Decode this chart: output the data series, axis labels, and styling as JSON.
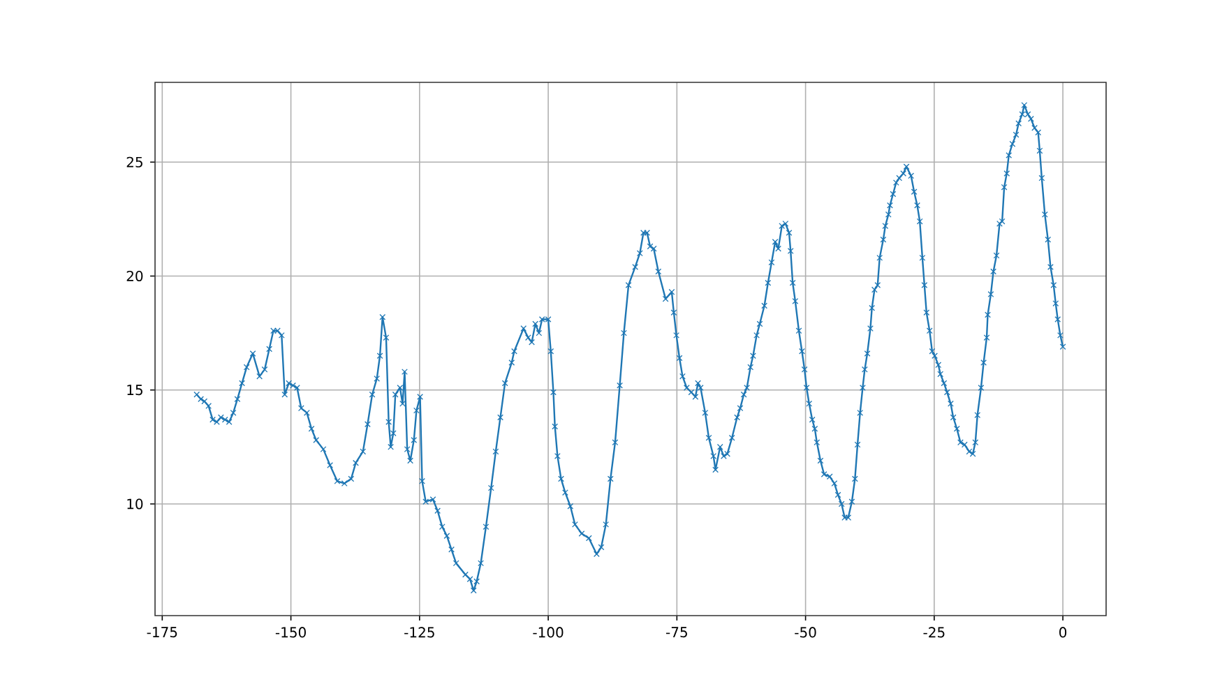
{
  "chart_data": {
    "type": "line",
    "color": "#1f77b4",
    "marker": "cross",
    "line_style": "solid",
    "grid": true,
    "x": [
      -168.3,
      -167.5,
      -166.8,
      -166.0,
      -165.2,
      -164.4,
      -163.6,
      -162.8,
      -162.0,
      -161.2,
      -160.4,
      -159.5,
      -158.6,
      -157.4,
      -156.1,
      -155.1,
      -154.2,
      -153.4,
      -152.6,
      -151.8,
      -151.2,
      -150.4,
      -149.6,
      -148.8,
      -148.0,
      -146.9,
      -146.0,
      -145.1,
      -143.7,
      -142.4,
      -141.0,
      -139.6,
      -138.3,
      -137.4,
      -136.0,
      -135.1,
      -134.2,
      -133.3,
      -132.7,
      -132.2,
      -131.5,
      -131.0,
      -130.6,
      -130.1,
      -129.7,
      -128.8,
      -128.3,
      -127.9,
      -127.4,
      -126.8,
      -126.1,
      -125.6,
      -124.9,
      -124.5,
      -123.8,
      -122.4,
      -121.5,
      -120.6,
      -119.7,
      -118.8,
      -117.9,
      -116.1,
      -115.2,
      -114.5,
      -113.9,
      -113.1,
      -112.1,
      -111.1,
      -110.2,
      -109.3,
      -108.4,
      -107.1,
      -106.6,
      -104.8,
      -103.9,
      -103.2,
      -102.5,
      -101.8,
      -101.2,
      -100.0,
      -99.5,
      -99.0,
      -98.7,
      -98.2,
      -97.5,
      -96.7,
      -95.7,
      -94.8,
      -93.5,
      -92.1,
      -90.6,
      -89.7,
      -88.8,
      -87.9,
      -87.0,
      -86.1,
      -85.3,
      -84.4,
      -83.1,
      -82.2,
      -81.5,
      -80.8,
      -80.2,
      -79.5,
      -78.6,
      -77.2,
      -76.0,
      -75.6,
      -75.1,
      -74.5,
      -73.9,
      -73.1,
      -72.2,
      -71.4,
      -70.9,
      -70.4,
      -69.5,
      -68.8,
      -67.9,
      -67.5,
      -66.6,
      -65.9,
      -65.2,
      -64.3,
      -63.3,
      -62.7,
      -62.0,
      -61.4,
      -60.7,
      -60.2,
      -59.5,
      -58.9,
      -58.0,
      -57.3,
      -56.6,
      -55.9,
      -55.3,
      -54.6,
      -53.9,
      -53.2,
      -52.9,
      -52.5,
      -52.0,
      -51.3,
      -50.7,
      -50.2,
      -49.8,
      -49.3,
      -48.7,
      -48.2,
      -47.8,
      -47.1,
      -46.4,
      -45.3,
      -44.4,
      -43.7,
      -43.0,
      -42.4,
      -41.7,
      -41.0,
      -40.4,
      -39.9,
      -39.4,
      -38.9,
      -38.5,
      -38.0,
      -37.4,
      -37.1,
      -36.6,
      -36.0,
      -35.6,
      -34.9,
      -34.5,
      -33.9,
      -33.6,
      -33.0,
      -32.4,
      -31.8,
      -31.0,
      -30.4,
      -29.5,
      -28.9,
      -28.3,
      -27.8,
      -27.3,
      -26.9,
      -26.5,
      -25.9,
      -25.4,
      -24.9,
      -24.2,
      -23.8,
      -23.1,
      -22.5,
      -21.8,
      -21.3,
      -20.6,
      -19.9,
      -19.1,
      -18.2,
      -17.5,
      -17.0,
      -16.6,
      -15.9,
      -15.4,
      -14.8,
      -14.6,
      -14.0,
      -13.5,
      -12.9,
      -12.3,
      -11.8,
      -11.4,
      -10.9,
      -10.5,
      -9.8,
      -9.1,
      -8.6,
      -7.9,
      -7.5,
      -6.8,
      -6.2,
      -5.5,
      -4.8,
      -4.5,
      -4.1,
      -3.5,
      -2.9,
      -2.4,
      -1.8,
      -1.4,
      -1.0,
      -0.5,
      0.0
    ],
    "values": [
      14.8,
      14.6,
      14.5,
      14.3,
      13.7,
      13.6,
      13.8,
      13.7,
      13.6,
      14.0,
      14.6,
      15.3,
      16.0,
      16.6,
      15.6,
      15.9,
      16.8,
      17.6,
      17.6,
      17.4,
      14.8,
      15.3,
      15.2,
      15.1,
      14.2,
      14.0,
      13.3,
      12.8,
      12.4,
      11.7,
      11.0,
      10.9,
      11.1,
      11.8,
      12.3,
      13.5,
      14.8,
      15.5,
      16.5,
      18.2,
      17.3,
      13.6,
      12.5,
      13.1,
      14.8,
      15.1,
      14.4,
      15.8,
      12.4,
      11.9,
      12.8,
      14.1,
      14.7,
      11.0,
      10.1,
      10.2,
      9.7,
      9.0,
      8.6,
      8.0,
      7.4,
      6.9,
      6.7,
      6.2,
      6.6,
      7.4,
      9.0,
      10.7,
      12.3,
      13.8,
      15.3,
      16.2,
      16.7,
      17.7,
      17.3,
      17.1,
      17.9,
      17.5,
      18.1,
      18.1,
      16.7,
      14.9,
      13.4,
      12.1,
      11.1,
      10.5,
      9.9,
      9.1,
      8.7,
      8.5,
      7.8,
      8.1,
      9.1,
      11.1,
      12.7,
      15.2,
      17.5,
      19.6,
      20.4,
      21.0,
      21.9,
      21.9,
      21.3,
      21.2,
      20.2,
      19.0,
      19.3,
      18.4,
      17.4,
      16.4,
      15.6,
      15.1,
      14.9,
      14.7,
      15.3,
      15.1,
      14.0,
      12.9,
      12.1,
      11.5,
      12.5,
      12.1,
      12.2,
      12.9,
      13.8,
      14.2,
      14.8,
      15.1,
      16.0,
      16.5,
      17.4,
      17.9,
      18.7,
      19.7,
      20.6,
      21.5,
      21.2,
      22.2,
      22.3,
      21.9,
      21.1,
      19.7,
      18.9,
      17.6,
      16.7,
      15.9,
      15.1,
      14.4,
      13.7,
      13.3,
      12.7,
      11.9,
      11.3,
      11.2,
      10.9,
      10.4,
      10.0,
      9.4,
      9.4,
      10.1,
      11.1,
      12.6,
      14.0,
      15.1,
      15.9,
      16.6,
      17.7,
      18.6,
      19.4,
      19.6,
      20.8,
      21.6,
      22.2,
      22.7,
      23.1,
      23.6,
      24.1,
      24.3,
      24.5,
      24.8,
      24.4,
      23.7,
      23.1,
      22.4,
      20.8,
      19.6,
      18.4,
      17.6,
      16.7,
      16.5,
      16.1,
      15.7,
      15.3,
      14.9,
      14.4,
      13.8,
      13.3,
      12.7,
      12.6,
      12.3,
      12.2,
      12.7,
      13.9,
      15.1,
      16.2,
      17.3,
      18.3,
      19.2,
      20.2,
      20.9,
      22.3,
      22.4,
      23.9,
      24.5,
      25.3,
      25.8,
      26.2,
      26.7,
      27.1,
      27.5,
      27.1,
      26.9,
      26.5,
      26.3,
      25.5,
      24.3,
      22.7,
      21.6,
      20.4,
      19.6,
      18.8,
      18.1,
      17.4,
      16.9
    ],
    "xlim": [
      -176.4,
      8.4
    ],
    "ylim": [
      5.1,
      28.5
    ],
    "xticks": [
      -175,
      -150,
      -125,
      -100,
      -75,
      -50,
      -25,
      0
    ],
    "yticks": [
      10,
      15,
      20,
      25
    ]
  }
}
